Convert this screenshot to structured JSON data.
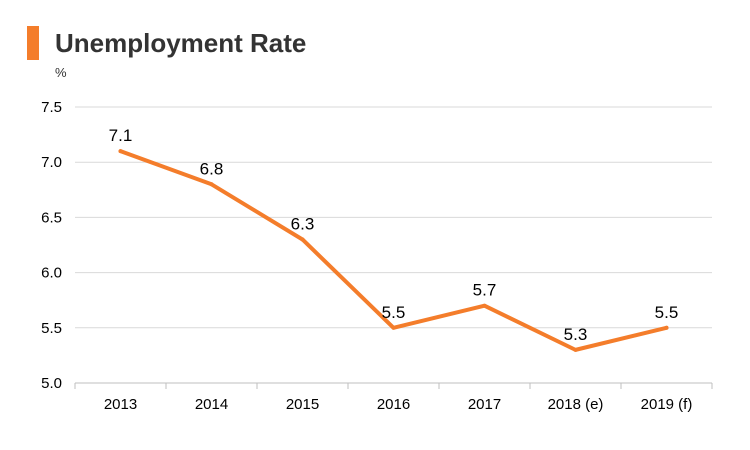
{
  "chart_data": {
    "type": "line",
    "title": "Unemployment Rate",
    "ylabel": "%",
    "xlabel": "",
    "categories": [
      "2013",
      "2014",
      "2015",
      "2016",
      "2017",
      "2018 (e)",
      "2019 (f)"
    ],
    "series": [
      {
        "name": "Unemployment Rate",
        "values": [
          7.1,
          6.8,
          6.3,
          5.5,
          5.7,
          5.3,
          5.5
        ],
        "labels": [
          "7.1",
          "6.8",
          "6.3",
          "5.5",
          "5.7",
          "5.3",
          "5.5"
        ]
      }
    ],
    "ylim": [
      5.0,
      7.5
    ],
    "yticks": [
      5.0,
      5.5,
      6.0,
      6.5,
      7.0,
      7.5
    ],
    "ytick_labels": [
      "5.0",
      "5.5",
      "6.0",
      "6.5",
      "7.0",
      "7.5"
    ],
    "grid": true,
    "legend": "none"
  },
  "colors": {
    "line": "#f47d2b",
    "accent": "#f47d2b",
    "grid": "#d9d9d9",
    "axis": "#bfbfbf",
    "text": "#000000",
    "title": "#333333"
  }
}
